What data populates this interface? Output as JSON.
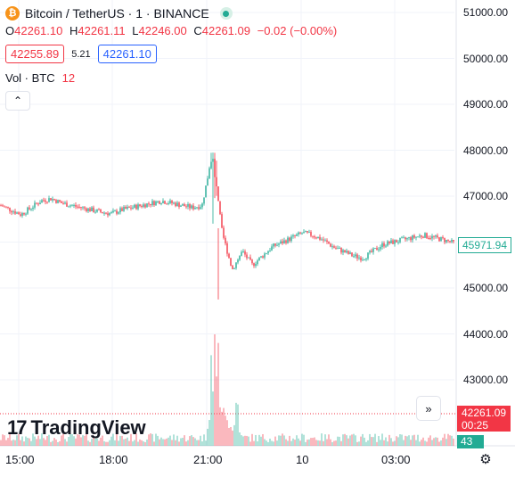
{
  "header": {
    "logo_glyph": "₿",
    "title": "Bitcoin / TetherUS · 1 · BINANCE",
    "market_status_icon": "market-open-dot"
  },
  "ohlc": {
    "o_label": "O",
    "o_value": "42261.10",
    "h_label": "H",
    "h_value": "42261.11",
    "l_label": "L",
    "l_value": "42246.00",
    "c_label": "C",
    "c_value": "42261.09",
    "change": "−0.02 (−0.00%)"
  },
  "trade": {
    "sell_price": "42255.89",
    "spread": "5.21",
    "buy_price": "42261.10"
  },
  "volume_legend": {
    "label": "Vol · BTC",
    "value": "12"
  },
  "collapse_glyph": "⌃",
  "price_axis": {
    "ticks": [
      "51000.00",
      "50000.00",
      "49000.00",
      "48000.00",
      "47000.00",
      "46000.00",
      "45000.00",
      "44000.00",
      "43000.00"
    ],
    "last_visible_price": "45971.94",
    "current_price": "42261.09",
    "countdown": "00:25",
    "current_volume": "43"
  },
  "time_axis": {
    "ticks": [
      "15:00",
      "18:00",
      "21:00",
      "10",
      "03:00"
    ]
  },
  "brand": {
    "mark": "17",
    "word": "TradingView"
  },
  "scroll_glyph": "»",
  "settings_glyph": "⚙",
  "colors": {
    "up": "#22ab94",
    "down": "#f23645",
    "axis_text": "#131722",
    "grid": "#f0f3fa",
    "brand": "#2962ff",
    "btc": "#f7931a"
  },
  "chart_data": {
    "type": "candlestick",
    "price_range": [
      42000,
      51000
    ],
    "x_ticks": [
      "15:00",
      "18:00",
      "21:00",
      "10",
      "03:00"
    ],
    "series_close_approx": [
      46800,
      46700,
      46600,
      46750,
      46900,
      46950,
      46850,
      46800,
      46750,
      46700,
      46650,
      46620,
      46700,
      46750,
      46800,
      46850,
      46900,
      46850,
      46800,
      46750,
      46800,
      47900,
      46200,
      45400,
      45800,
      45500,
      45700,
      45900,
      46000,
      46100,
      46200,
      46150,
      46050,
      45900,
      45800,
      45700,
      45650,
      45800,
      45950,
      46000,
      46050,
      46100,
      46150,
      46100,
      46050,
      45980
    ]
  }
}
